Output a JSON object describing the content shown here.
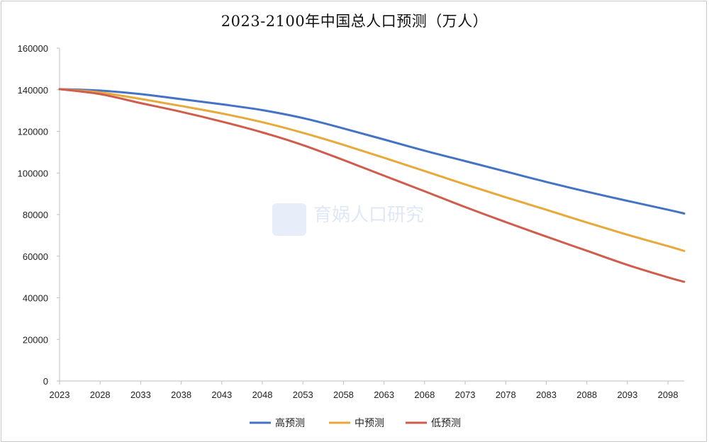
{
  "chart_data": {
    "type": "line",
    "title": "2023-2100年中国总人口预测（万人）",
    "xlabel": "",
    "ylabel": "",
    "x": [
      2023,
      2028,
      2033,
      2038,
      2043,
      2048,
      2053,
      2058,
      2063,
      2068,
      2073,
      2078,
      2083,
      2088,
      2093,
      2098,
      2100
    ],
    "x_tick_labels": [
      "2023",
      "2028",
      "2033",
      "2038",
      "2043",
      "2048",
      "2053",
      "2058",
      "2063",
      "2068",
      "2073",
      "2078",
      "2083",
      "2088",
      "2093",
      "2098"
    ],
    "y_tick_labels": [
      "0",
      "20000",
      "40000",
      "60000",
      "80000",
      "100000",
      "120000",
      "140000",
      "160000"
    ],
    "ylim": [
      0,
      160000
    ],
    "xlim": [
      2023,
      2100
    ],
    "grid": false,
    "legend_position": "bottom",
    "series": [
      {
        "name": "高预测",
        "color": "#4472C4",
        "values": [
          140300,
          139600,
          137900,
          135500,
          133000,
          130200,
          126400,
          121400,
          116100,
          110700,
          105700,
          100700,
          95700,
          91000,
          86600,
          82300,
          80500
        ]
      },
      {
        "name": "中预测",
        "color": "#E8A93A",
        "values": [
          140300,
          138700,
          135600,
          132200,
          128600,
          124400,
          119300,
          113500,
          107300,
          100900,
          94500,
          88300,
          82300,
          76200,
          70300,
          64800,
          62500
        ]
      },
      {
        "name": "低预测",
        "color": "#D05D4C",
        "values": [
          140300,
          137900,
          133600,
          129400,
          124700,
          119500,
          113400,
          106200,
          98700,
          91200,
          83600,
          76400,
          69400,
          62600,
          55800,
          49800,
          47700
        ]
      }
    ]
  },
  "watermark": {
    "text": "育娲人口研究"
  }
}
